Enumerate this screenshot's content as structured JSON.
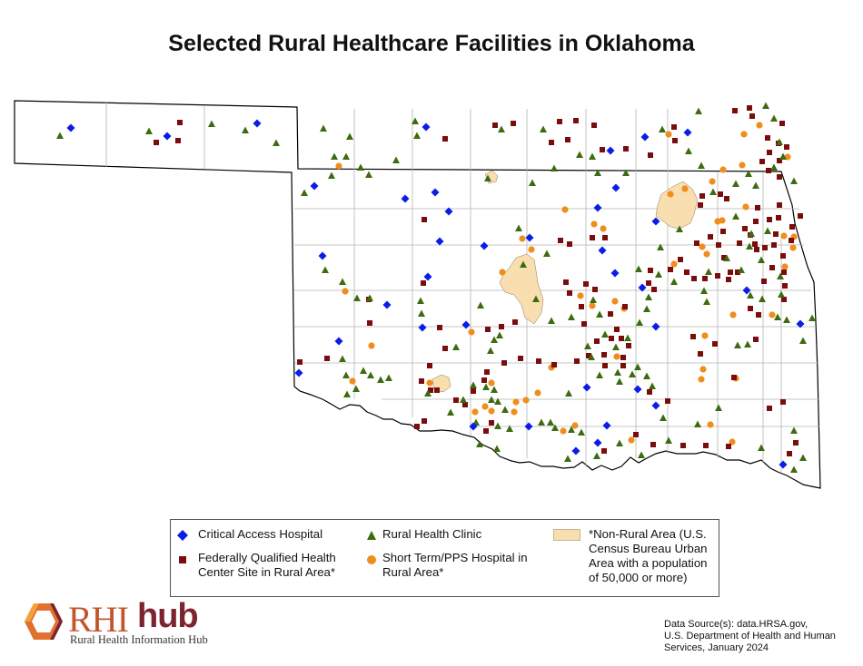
{
  "title": "Selected Rural Healthcare Facilities in Oklahoma",
  "colors": {
    "critical_access_hospital": "#0a1de8",
    "rural_health_clinic": "#3d6b10",
    "fqhc_site": "#7b0c0c",
    "short_term_hospital": "#ef8e1c",
    "non_rural_area": "#f9deb0",
    "state_fill": "#ffffff",
    "county_border": "#b4b4b4",
    "state_border": "#000000"
  },
  "legend": {
    "critical_access_hospital": "Critical Access Hospital",
    "rural_health_clinic": "Rural Health Clinic",
    "non_rural_line1": "*Non-Rural Area (U.S.",
    "non_rural_line2": "Census Bureau Urban",
    "non_rural_line3": "Area with a population",
    "non_rural_line4": "of 50,000 or more)",
    "fqhc_line1": "Federally Qualified Health",
    "fqhc_line2": "Center Site in Rural Area*",
    "short_term_line1": "Short Term/PPS Hospital in",
    "short_term_line2": "Rural Area*"
  },
  "logo": {
    "rhi": "RHI",
    "hub": "hub",
    "subtitle": "Rural Health Information Hub"
  },
  "source": {
    "line1": "Data Source(s): data.HRSA.gov,",
    "line2": "U.S. Department of Health and Human",
    "line3": "Services, January 2024"
  }
}
